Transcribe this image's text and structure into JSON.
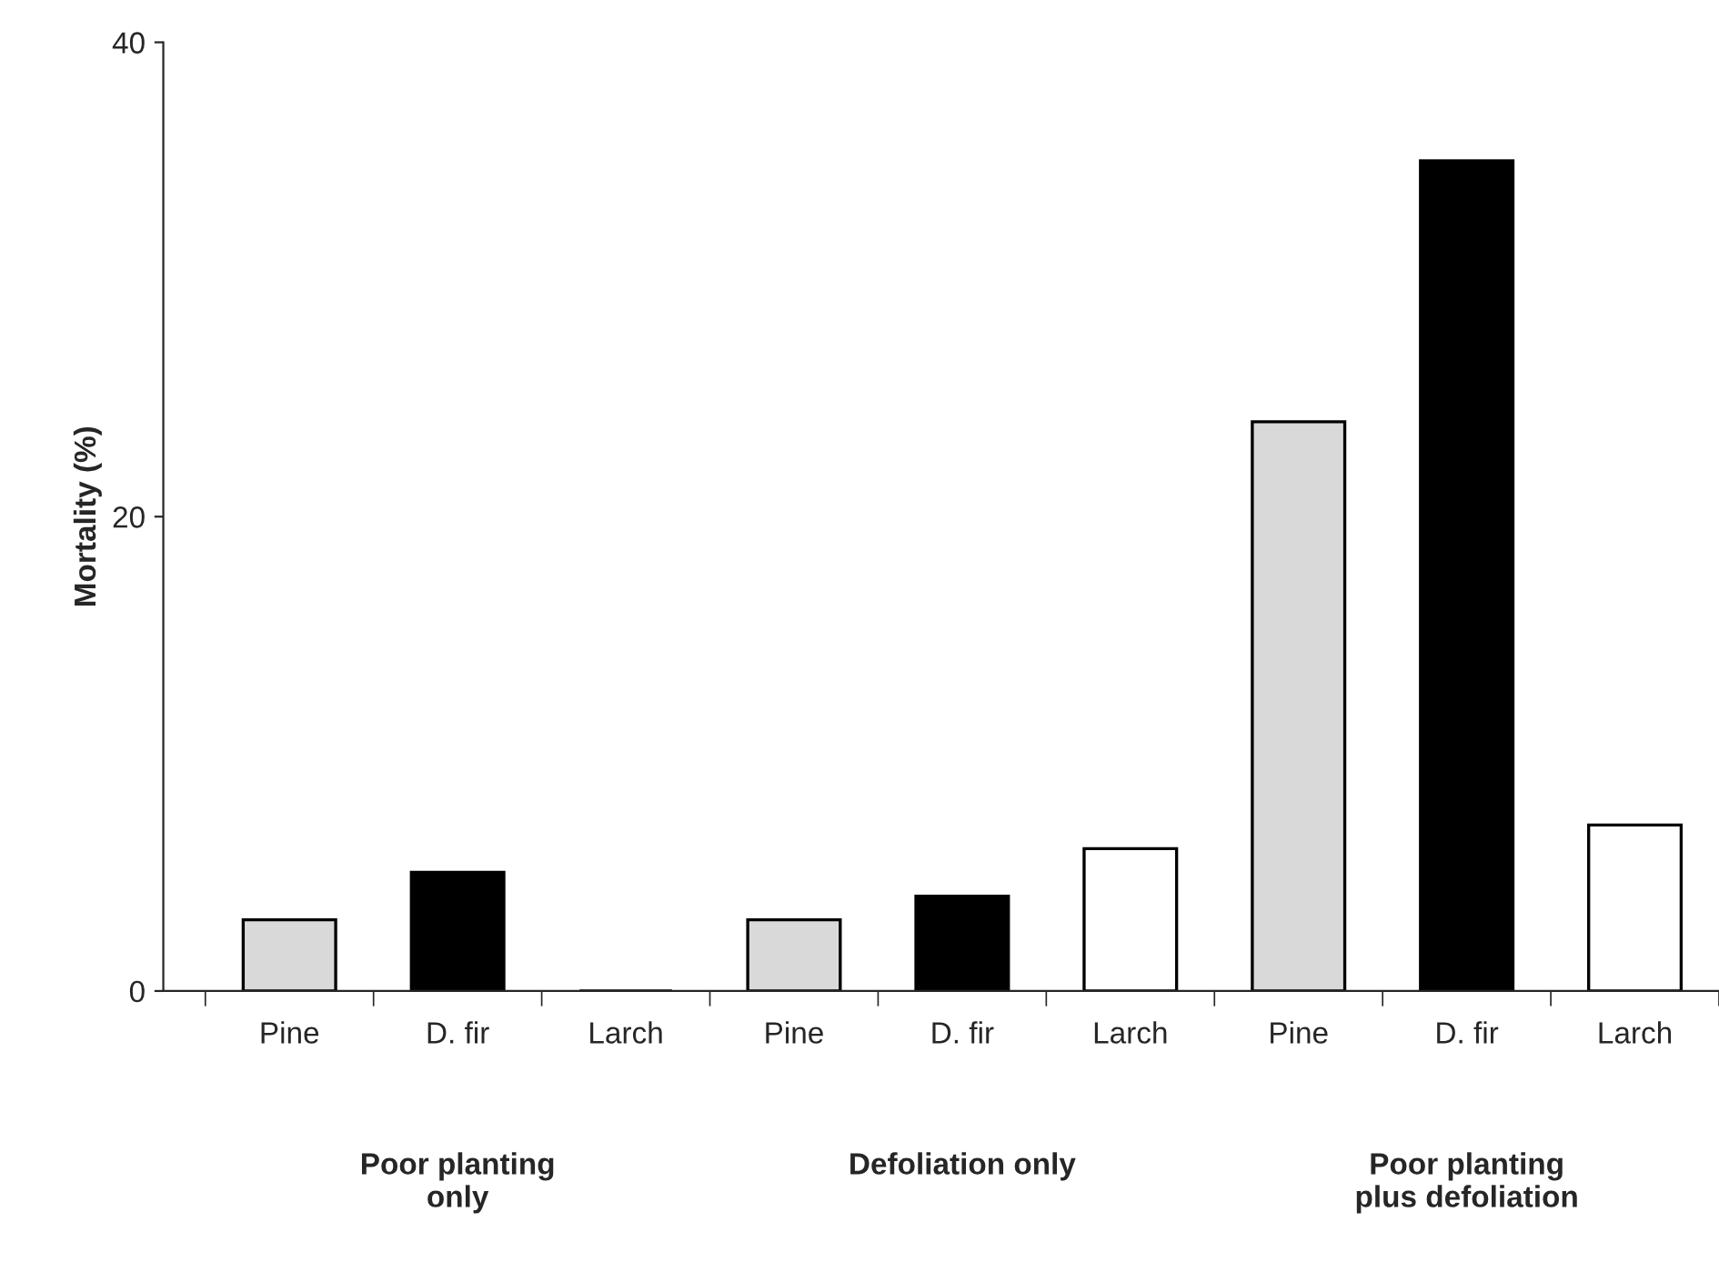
{
  "chart_data": {
    "type": "bar",
    "ylabel": "Mortality (%)",
    "categories": [
      "Pine",
      "D. fir",
      "Larch",
      "Pine",
      "D. fir",
      "Larch",
      "Pine",
      "D. fir",
      "Larch"
    ],
    "values": [
      3,
      5,
      0,
      3,
      4,
      6,
      24,
      35,
      7
    ],
    "colors": [
      "#d9d9d9",
      "#000000",
      "#000000",
      "#d9d9d9",
      "#000000",
      "#ffffff",
      "#d9d9d9",
      "#000000",
      "#ffffff"
    ],
    "ylim": [
      0,
      40
    ],
    "yticks": [
      0,
      20,
      40
    ],
    "grid": false,
    "legend": false,
    "annotations": [
      "Poor planting\nonly",
      "Defoliation only",
      "Poor planting\nplus defoliation"
    ]
  }
}
